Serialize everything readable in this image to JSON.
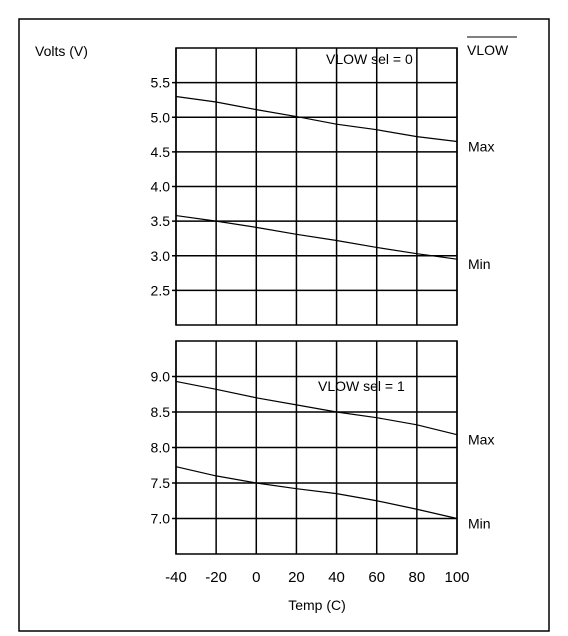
{
  "chart_data": [
    {
      "type": "line",
      "title": "VLOW sel = 0",
      "corner_label": "VLOW",
      "xlabel": "",
      "ylabel": "Volts (V)",
      "xlim": [
        -40,
        100
      ],
      "ylim": [
        2.0,
        6.0
      ],
      "x_ticks": [
        -40,
        -20,
        0,
        20,
        40,
        60,
        80,
        100
      ],
      "y_ticks": [
        "2.5",
        "3.0",
        "3.5",
        "4.0",
        "4.5",
        "5.0",
        "5.5"
      ],
      "grid": true,
      "series": [
        {
          "name": "Max",
          "x": [
            -40,
            -20,
            0,
            20,
            40,
            60,
            80,
            100
          ],
          "y": [
            5.3,
            5.22,
            5.11,
            5.01,
            4.9,
            4.82,
            4.72,
            4.65
          ]
        },
        {
          "name": "Min",
          "x": [
            -40,
            -20,
            0,
            20,
            40,
            60,
            80,
            100
          ],
          "y": [
            3.58,
            3.5,
            3.41,
            3.31,
            3.22,
            3.12,
            3.03,
            2.95
          ]
        }
      ]
    },
    {
      "type": "line",
      "title": "VLOW sel = 1",
      "xlabel": "Temp (C)",
      "ylabel": "",
      "xlim": [
        -40,
        100
      ],
      "ylim": [
        6.5,
        9.5
      ],
      "x_ticks": [
        -40,
        -20,
        0,
        20,
        40,
        60,
        80,
        100
      ],
      "y_ticks": [
        "7.0",
        "7.5",
        "8.0",
        "8.5",
        "9.0"
      ],
      "grid": true,
      "series": [
        {
          "name": "Max",
          "x": [
            -40,
            -20,
            0,
            20,
            40,
            60,
            80,
            100
          ],
          "y": [
            8.93,
            8.82,
            8.7,
            8.6,
            8.5,
            8.42,
            8.32,
            8.18
          ]
        },
        {
          "name": "Min",
          "x": [
            -40,
            -20,
            0,
            20,
            40,
            60,
            80,
            100
          ],
          "y": [
            7.73,
            7.6,
            7.5,
            7.42,
            7.35,
            7.25,
            7.13,
            7.0
          ]
        }
      ]
    }
  ]
}
